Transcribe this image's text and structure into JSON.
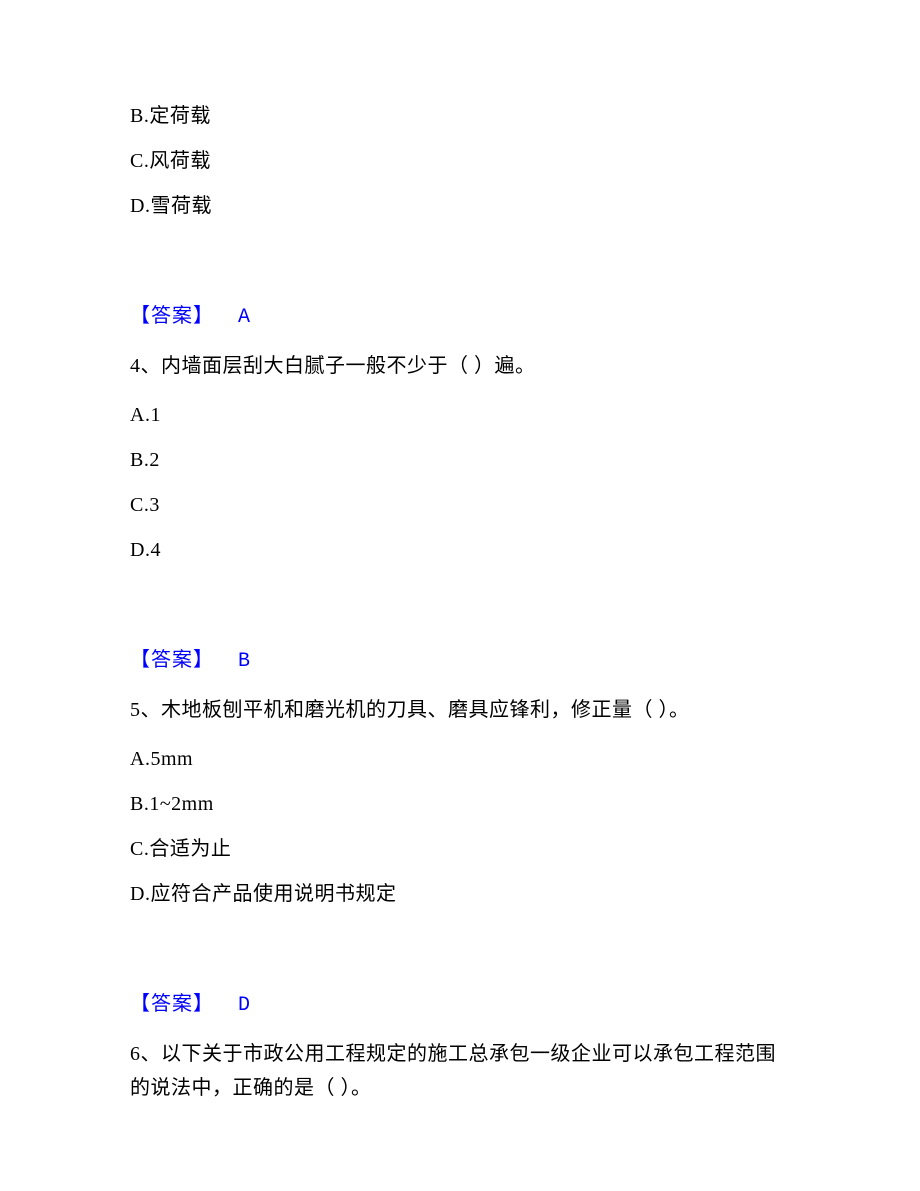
{
  "colors": {
    "text_black": "#000000",
    "text_blue": "#0000ff",
    "background": "#ffffff"
  },
  "typography": {
    "body_fontsize_pt": 15,
    "font_family": "SimSun"
  },
  "q3_tail": {
    "options": [
      {
        "label": "B.定荷载"
      },
      {
        "label": "C.风荷载"
      },
      {
        "label": "D.雪荷载"
      }
    ],
    "answer_label": "【答案】",
    "answer_value": "A"
  },
  "q4": {
    "number": "4、",
    "stem": "内墙面层刮大白腻子一般不少于（ ）遍。",
    "options": [
      {
        "label": "A.1"
      },
      {
        "label": "B.2"
      },
      {
        "label": "C.3"
      },
      {
        "label": "D.4"
      }
    ],
    "answer_label": "【答案】",
    "answer_value": "B"
  },
  "q5": {
    "number": "5、",
    "stem": "木地板刨平机和磨光机的刀具、磨具应锋利，修正量（ ）。",
    "options": [
      {
        "label": "A.5mm"
      },
      {
        "label": "B.1~2mm"
      },
      {
        "label": "C.合适为止"
      },
      {
        "label": "D.应符合产品使用说明书规定"
      }
    ],
    "answer_label": "【答案】",
    "answer_value": "D"
  },
  "q6": {
    "number": "6、",
    "stem": "以下关于市政公用工程规定的施工总承包一级企业可以承包工程范围的说法中，正确的是（ ）。"
  }
}
